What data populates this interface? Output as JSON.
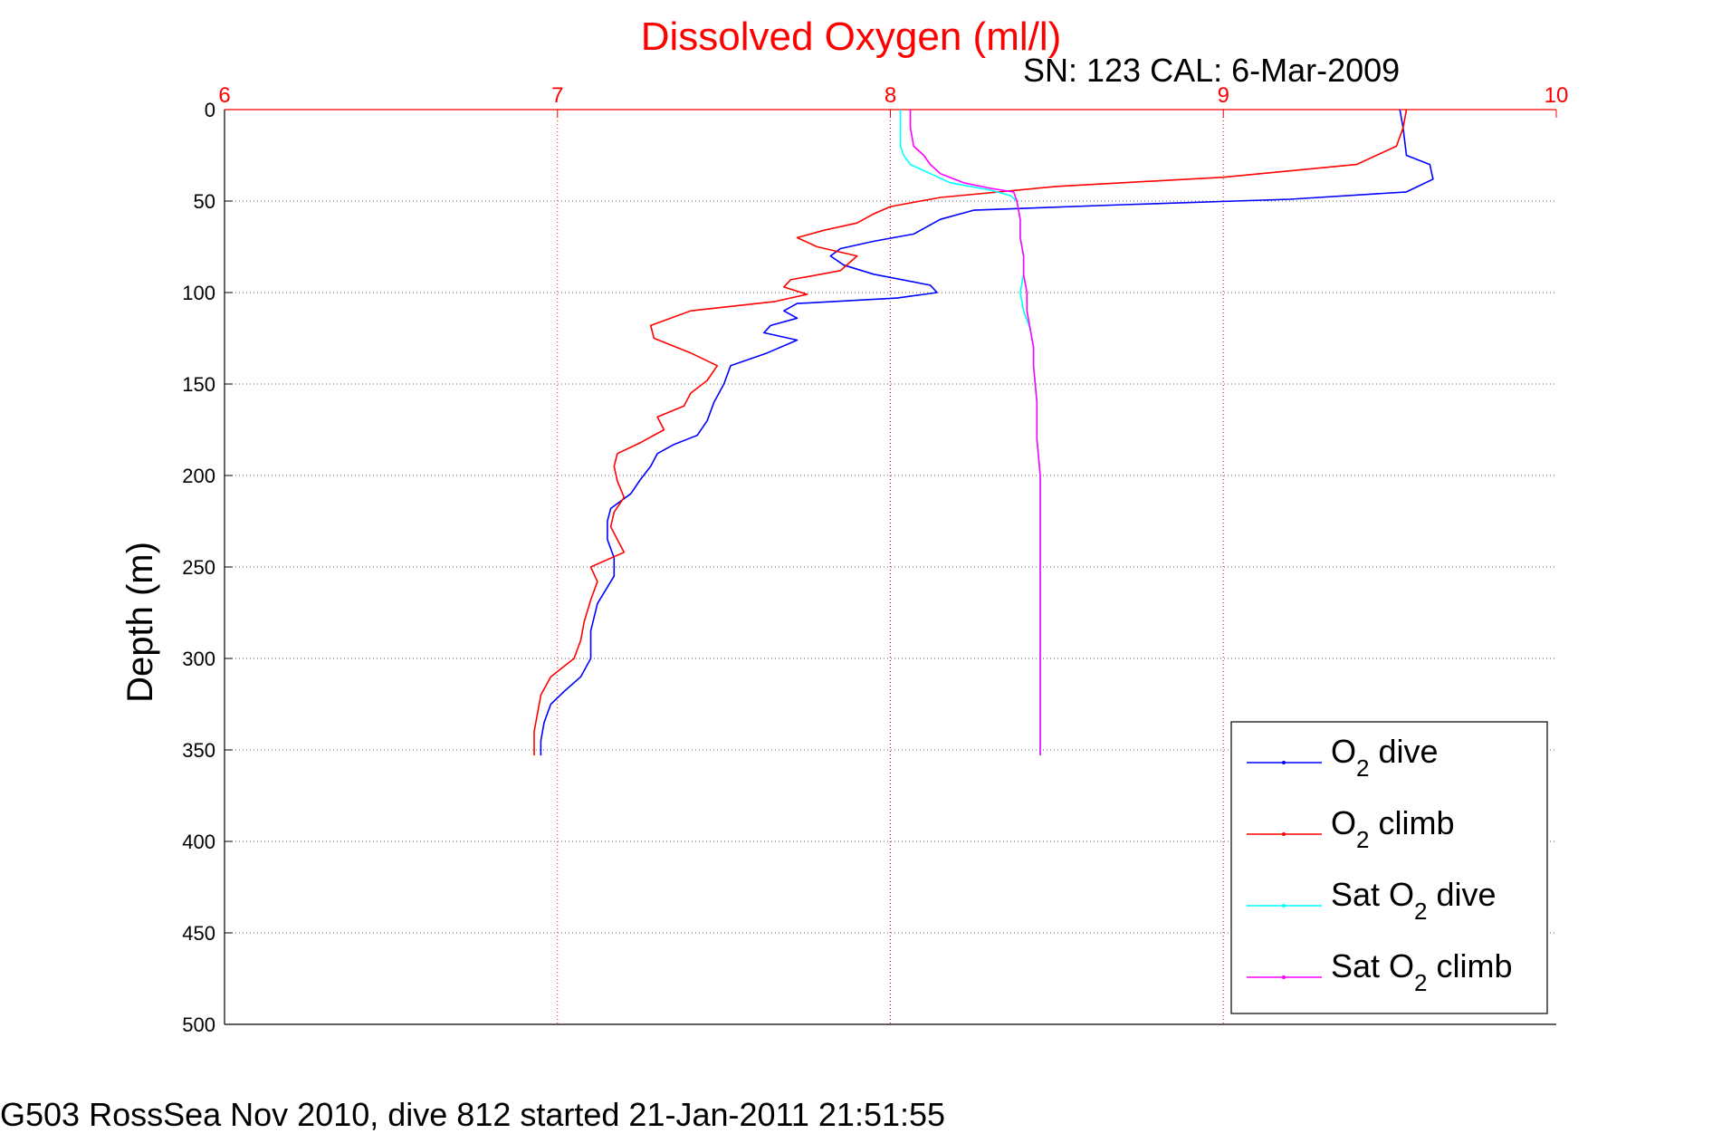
{
  "chart_data": {
    "type": "line",
    "title": "Dissolved Oxygen (ml/l)",
    "subtitle": "SN: 123  CAL: 6-Mar-2009",
    "xlabel": "",
    "ylabel": "Depth (m)",
    "footer": "G503 RossSea Nov 2010, dive 812 started 21-Jan-2011 21:51:55",
    "xlim": [
      6,
      10
    ],
    "ylim": [
      0,
      500
    ],
    "y_reversed": true,
    "x_axis_position": "top",
    "x_ticks": [
      "6",
      "7",
      "8",
      "9",
      "10"
    ],
    "y_ticks": [
      "0",
      "50",
      "100",
      "150",
      "200",
      "250",
      "300",
      "350",
      "400",
      "450",
      "500"
    ],
    "grid": true,
    "legend_position": "bottom-right",
    "title_color": "#ff0000",
    "x_tick_color": "#ff0000",
    "series": [
      {
        "name_base": "O",
        "name_sub": "2",
        "name_rest": " dive",
        "color": "#0000ff",
        "points": [
          [
            9.53,
            0
          ],
          [
            9.54,
            10
          ],
          [
            9.55,
            25
          ],
          [
            9.62,
            30
          ],
          [
            9.63,
            38
          ],
          [
            9.55,
            45
          ],
          [
            9.2,
            49
          ],
          [
            8.7,
            52
          ],
          [
            8.25,
            55
          ],
          [
            8.15,
            60
          ],
          [
            8.07,
            68
          ],
          [
            7.95,
            72
          ],
          [
            7.85,
            76
          ],
          [
            7.82,
            80
          ],
          [
            7.86,
            85
          ],
          [
            7.95,
            90
          ],
          [
            8.12,
            96
          ],
          [
            8.14,
            100
          ],
          [
            8.02,
            103
          ],
          [
            7.72,
            106
          ],
          [
            7.68,
            110
          ],
          [
            7.72,
            114
          ],
          [
            7.64,
            118
          ],
          [
            7.62,
            122
          ],
          [
            7.72,
            126
          ],
          [
            7.63,
            133
          ],
          [
            7.52,
            140
          ],
          [
            7.5,
            150
          ],
          [
            7.47,
            160
          ],
          [
            7.45,
            170
          ],
          [
            7.42,
            178
          ],
          [
            7.35,
            183
          ],
          [
            7.3,
            188
          ],
          [
            7.28,
            195
          ],
          [
            7.25,
            202
          ],
          [
            7.22,
            210
          ],
          [
            7.16,
            218
          ],
          [
            7.15,
            225
          ],
          [
            7.15,
            235
          ],
          [
            7.17,
            245
          ],
          [
            7.17,
            255
          ],
          [
            7.12,
            270
          ],
          [
            7.1,
            285
          ],
          [
            7.1,
            300
          ],
          [
            7.07,
            310
          ],
          [
            7.02,
            318
          ],
          [
            6.98,
            325
          ],
          [
            6.96,
            335
          ],
          [
            6.95,
            345
          ],
          [
            6.95,
            353
          ]
        ]
      },
      {
        "name_base": "O",
        "name_sub": "2",
        "name_rest": " climb",
        "color": "#ff0000",
        "points": [
          [
            9.55,
            0
          ],
          [
            9.54,
            10
          ],
          [
            9.52,
            20
          ],
          [
            9.4,
            30
          ],
          [
            9.0,
            37
          ],
          [
            8.5,
            42
          ],
          [
            8.15,
            48
          ],
          [
            8.0,
            53
          ],
          [
            7.95,
            57
          ],
          [
            7.9,
            62
          ],
          [
            7.8,
            66
          ],
          [
            7.72,
            70
          ],
          [
            7.78,
            75
          ],
          [
            7.9,
            80
          ],
          [
            7.85,
            88
          ],
          [
            7.7,
            93
          ],
          [
            7.68,
            97
          ],
          [
            7.75,
            101
          ],
          [
            7.65,
            105
          ],
          [
            7.4,
            110
          ],
          [
            7.28,
            118
          ],
          [
            7.29,
            125
          ],
          [
            7.4,
            133
          ],
          [
            7.48,
            140
          ],
          [
            7.45,
            148
          ],
          [
            7.4,
            155
          ],
          [
            7.38,
            162
          ],
          [
            7.3,
            168
          ],
          [
            7.32,
            175
          ],
          [
            7.25,
            182
          ],
          [
            7.18,
            188
          ],
          [
            7.17,
            195
          ],
          [
            7.18,
            203
          ],
          [
            7.2,
            212
          ],
          [
            7.17,
            220
          ],
          [
            7.16,
            228
          ],
          [
            7.18,
            235
          ],
          [
            7.2,
            242
          ],
          [
            7.1,
            250
          ],
          [
            7.12,
            258
          ],
          [
            7.1,
            268
          ],
          [
            7.08,
            280
          ],
          [
            7.07,
            290
          ],
          [
            7.05,
            300
          ],
          [
            6.98,
            310
          ],
          [
            6.95,
            320
          ],
          [
            6.94,
            330
          ],
          [
            6.93,
            340
          ],
          [
            6.93,
            353
          ]
        ]
      },
      {
        "name_base": "Sat O",
        "name_sub": "2",
        "name_rest": " dive",
        "color": "#00ffff",
        "points": [
          [
            8.03,
            0
          ],
          [
            8.03,
            10
          ],
          [
            8.03,
            20
          ],
          [
            8.04,
            25
          ],
          [
            8.06,
            30
          ],
          [
            8.12,
            35
          ],
          [
            8.18,
            40
          ],
          [
            8.3,
            44
          ],
          [
            8.36,
            47
          ],
          [
            8.38,
            50
          ],
          [
            8.39,
            60
          ],
          [
            8.39,
            70
          ],
          [
            8.4,
            80
          ],
          [
            8.4,
            90
          ],
          [
            8.39,
            100
          ],
          [
            8.4,
            110
          ],
          [
            8.42,
            120
          ],
          [
            8.43,
            130
          ],
          [
            8.43,
            140
          ],
          [
            8.44,
            160
          ],
          [
            8.44,
            180
          ],
          [
            8.45,
            200
          ],
          [
            8.45,
            240
          ],
          [
            8.45,
            280
          ],
          [
            8.45,
            320
          ],
          [
            8.45,
            353
          ]
        ]
      },
      {
        "name_base": "Sat O",
        "name_sub": "2",
        "name_rest": " climb",
        "color": "#ff00ff",
        "points": [
          [
            8.06,
            0
          ],
          [
            8.06,
            10
          ],
          [
            8.07,
            20
          ],
          [
            8.1,
            25
          ],
          [
            8.12,
            30
          ],
          [
            8.15,
            35
          ],
          [
            8.22,
            40
          ],
          [
            8.3,
            43
          ],
          [
            8.37,
            45
          ],
          [
            8.38,
            50
          ],
          [
            8.39,
            60
          ],
          [
            8.39,
            70
          ],
          [
            8.4,
            80
          ],
          [
            8.4,
            90
          ],
          [
            8.41,
            100
          ],
          [
            8.41,
            110
          ],
          [
            8.42,
            120
          ],
          [
            8.43,
            130
          ],
          [
            8.43,
            140
          ],
          [
            8.44,
            160
          ],
          [
            8.44,
            180
          ],
          [
            8.45,
            200
          ],
          [
            8.45,
            240
          ],
          [
            8.45,
            280
          ],
          [
            8.45,
            320
          ],
          [
            8.45,
            353
          ]
        ]
      }
    ]
  }
}
